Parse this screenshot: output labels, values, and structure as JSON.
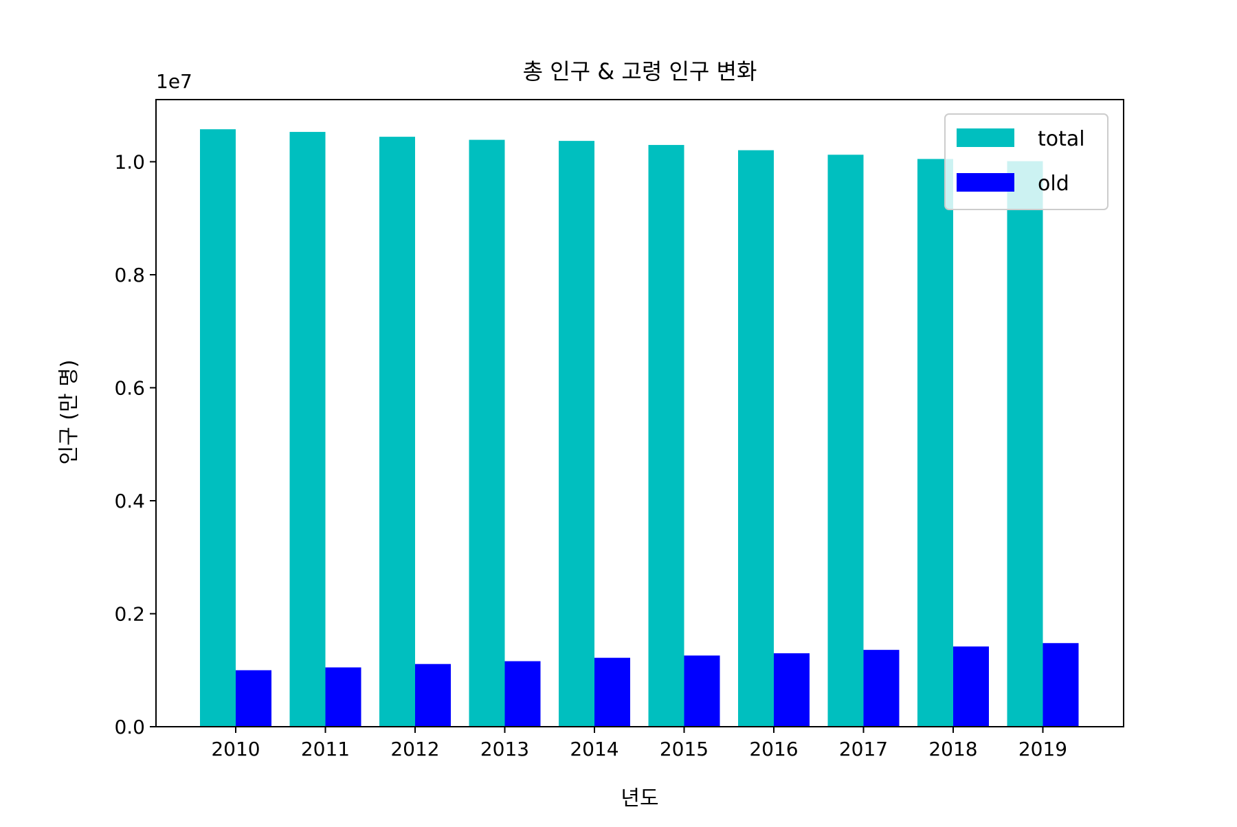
{
  "chart_data": {
    "type": "bar",
    "title": "총 인구 & 고령 인구 변화",
    "xlabel": "년도",
    "ylabel": "인구 (만 명)",
    "y_scale_label": "1e7",
    "categories": [
      "2010",
      "2011",
      "2012",
      "2013",
      "2014",
      "2015",
      "2016",
      "2017",
      "2018",
      "2019"
    ],
    "series": [
      {
        "name": "total",
        "color": "#00bfbf",
        "values": [
          10575000,
          10528000,
          10442000,
          10388000,
          10369000,
          10297000,
          10204000,
          10124000,
          10049000,
          10010000
        ]
      },
      {
        "name": "old",
        "color": "#0000ff",
        "values": [
          1000000,
          1050000,
          1110000,
          1160000,
          1220000,
          1260000,
          1300000,
          1360000,
          1420000,
          1480000
        ]
      }
    ],
    "ylim": [
      0,
      11100000
    ],
    "yticks": [
      0,
      2000000,
      4000000,
      6000000,
      8000000,
      10000000
    ],
    "ytick_labels": [
      "0.0",
      "0.2",
      "0.4",
      "0.6",
      "0.8",
      "1.0"
    ],
    "legend_position": "top-right",
    "grid": false
  }
}
